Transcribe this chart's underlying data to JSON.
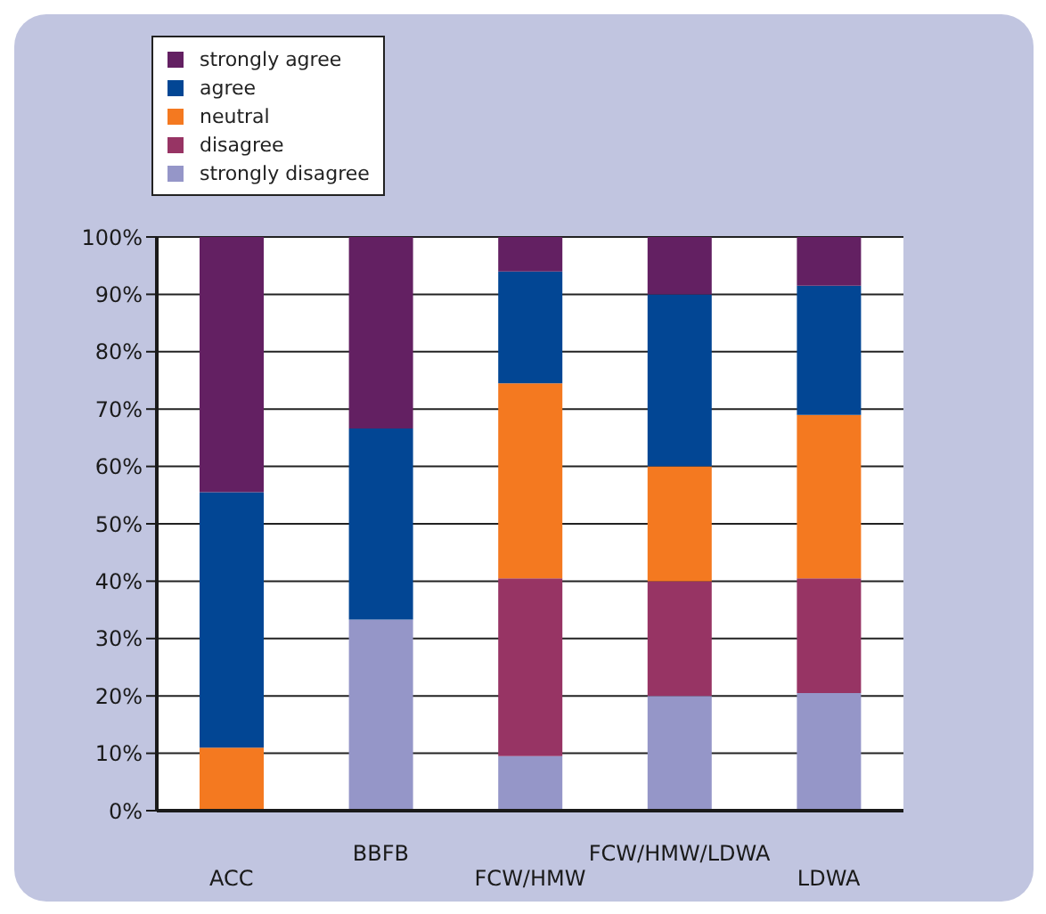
{
  "chart_data": {
    "type": "bar",
    "stacked": true,
    "categories": [
      "ACC",
      "BBFB",
      "FCW/HMW",
      "FCW/HMW/LDWA",
      "LDWA"
    ],
    "series": [
      {
        "name": "strongly disagree",
        "color": "#9596c8",
        "values": [
          0,
          33.3,
          9.5,
          20,
          20.5
        ]
      },
      {
        "name": "disagree",
        "color": "#973464",
        "values": [
          0,
          0,
          31,
          20,
          20
        ]
      },
      {
        "name": "neutral",
        "color": "#f47920",
        "values": [
          11,
          0,
          34,
          20,
          28.5
        ]
      },
      {
        "name": "agree",
        "color": "#024694",
        "values": [
          44.5,
          33.3,
          19.5,
          30,
          22.5
        ]
      },
      {
        "name": "strongly agree",
        "color": "#632062",
        "values": [
          44.5,
          33.4,
          6,
          10,
          8.5
        ]
      }
    ],
    "ylim": [
      0,
      100
    ],
    "yticks": [
      {
        "value": 0,
        "label": "0%"
      },
      {
        "value": 10,
        "label": "10%"
      },
      {
        "value": 20,
        "label": "20%"
      },
      {
        "value": 30,
        "label": "30%"
      },
      {
        "value": 40,
        "label": "40%"
      },
      {
        "value": 50,
        "label": "50%"
      },
      {
        "value": 60,
        "label": "60%"
      },
      {
        "value": 70,
        "label": "70%"
      },
      {
        "value": 80,
        "label": "80%"
      },
      {
        "value": 90,
        "label": "90%"
      },
      {
        "value": 100,
        "label": "100%"
      }
    ],
    "grid": "y",
    "legend": "top left"
  }
}
